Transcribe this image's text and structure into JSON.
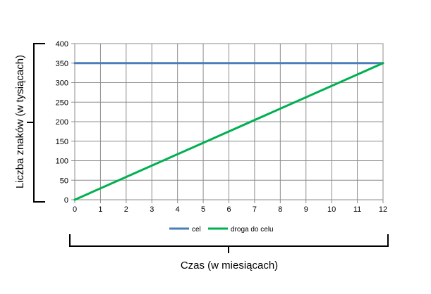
{
  "chart_data": {
    "type": "line",
    "xlabel": "Czas (w miesiącach)",
    "ylabel": "Liczba znaków (w tysiącach)",
    "xlim": [
      0,
      12
    ],
    "ylim": [
      0,
      400
    ],
    "x_ticks": [
      0,
      1,
      2,
      3,
      4,
      5,
      6,
      7,
      8,
      9,
      10,
      11,
      12
    ],
    "y_ticks": [
      0,
      50,
      100,
      150,
      200,
      250,
      300,
      350,
      400
    ],
    "grid": true,
    "legend_position": "bottom",
    "series": [
      {
        "name": "cel",
        "color": "#4a7ebb",
        "x": [
          0,
          12
        ],
        "y": [
          350,
          350
        ]
      },
      {
        "name": "droga do celu",
        "color": "#00b050",
        "x": [
          0,
          12
        ],
        "y": [
          0,
          350
        ]
      }
    ]
  }
}
